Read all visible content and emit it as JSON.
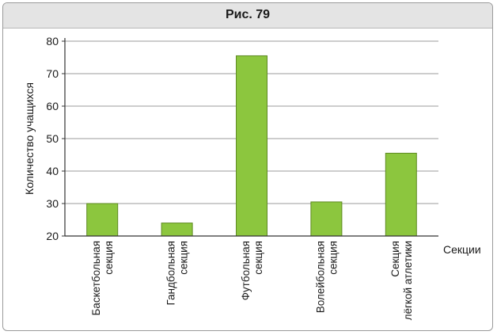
{
  "figure": {
    "caption": "Рис. 79"
  },
  "chart_data": {
    "type": "bar",
    "title": "Рис. 79",
    "xlabel": "Секции",
    "ylabel": "Количество учащихся",
    "ylim": [
      20,
      80
    ],
    "yticks": [
      20,
      30,
      40,
      50,
      60,
      70,
      80
    ],
    "grid": true,
    "categories": [
      [
        "Баскетбольная",
        "секция"
      ],
      [
        "Гандбольная",
        "секция"
      ],
      [
        "Футбольная",
        "секция"
      ],
      [
        "Волейбольная",
        "секция"
      ],
      [
        "Секция",
        "лёгкой атлетики"
      ]
    ],
    "values": [
      30,
      24,
      75.5,
      30.5,
      45.5
    ],
    "bar_color": "#8cc63e",
    "bar_edge": "#5e8a22"
  }
}
